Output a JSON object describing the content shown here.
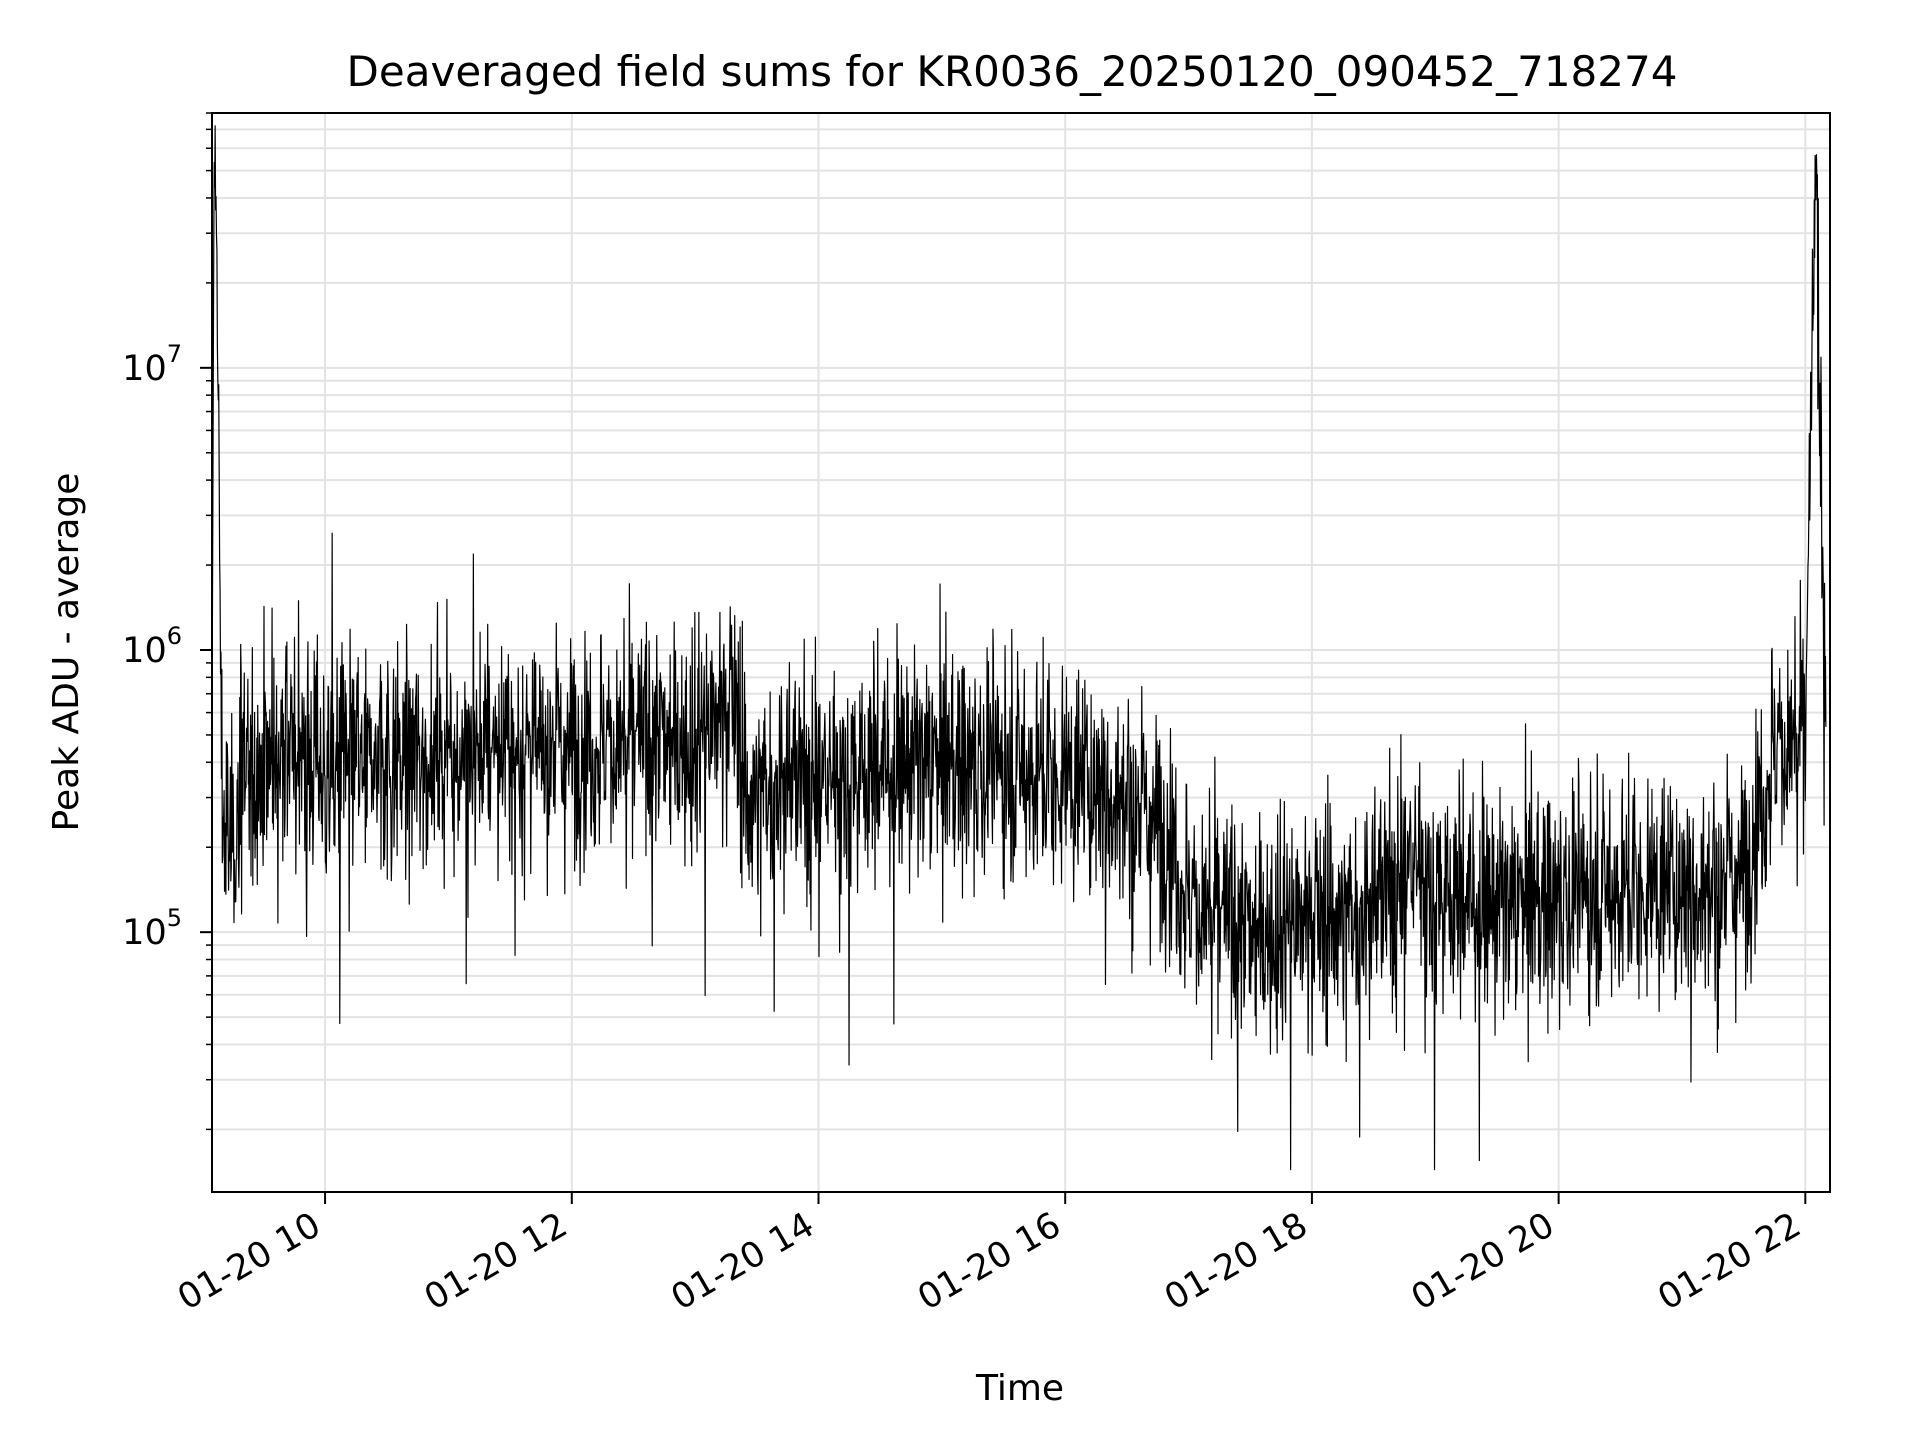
{
  "chart_data": {
    "type": "line",
    "title": "Deaveraged field sums for KR0036_20250120_090452_718274",
    "xlabel": "Time",
    "ylabel": "Peak ADU - average",
    "yscale": "log",
    "xlim": [
      "01-20 09:05",
      "01-20 22:12"
    ],
    "ylim": [
      12000,
      80000000
    ],
    "grid": true,
    "x_ticks": [
      {
        "time": "10:00",
        "label": "01-20 10"
      },
      {
        "time": "12:00",
        "label": "01-20 12"
      },
      {
        "time": "14:00",
        "label": "01-20 14"
      },
      {
        "time": "16:00",
        "label": "01-20 16"
      },
      {
        "time": "18:00",
        "label": "01-20 18"
      },
      {
        "time": "20:00",
        "label": "01-20 20"
      },
      {
        "time": "22:00",
        "label": "01-20 22"
      }
    ],
    "y_ticks": [
      {
        "value": 100000,
        "base": "10",
        "exp": "5"
      },
      {
        "value": 1000000,
        "base": "10",
        "exp": "6"
      },
      {
        "value": 10000000,
        "base": "10",
        "exp": "7"
      }
    ],
    "series": [
      {
        "color": "#000000",
        "x": [
          "09:05",
          "09:06",
          "09:07",
          "09:10",
          "09:15",
          "09:20",
          "09:30",
          "09:45",
          "10:00",
          "10:30",
          "11:00",
          "11:30",
          "12:00",
          "12:30",
          "13:00",
          "13:20",
          "13:25",
          "13:30",
          "14:00",
          "14:30",
          "15:00",
          "15:30",
          "16:00",
          "16:30",
          "16:50",
          "17:00",
          "17:30",
          "18:00",
          "18:30",
          "18:50",
          "19:00",
          "19:30",
          "20:00",
          "20:30",
          "21:00",
          "21:30",
          "21:45",
          "22:00",
          "22:05",
          "22:10"
        ],
        "values": [
          300000,
          55000000,
          40000000,
          250000,
          200000,
          350000,
          400000,
          420000,
          380000,
          400000,
          420000,
          450000,
          450000,
          480000,
          480000,
          650000,
          280000,
          320000,
          350000,
          380000,
          390000,
          380000,
          350000,
          300000,
          220000,
          130000,
          100000,
          110000,
          120000,
          180000,
          140000,
          120000,
          130000,
          140000,
          140000,
          160000,
          450000,
          500000,
          47000000,
          600000
        ]
      }
    ]
  }
}
